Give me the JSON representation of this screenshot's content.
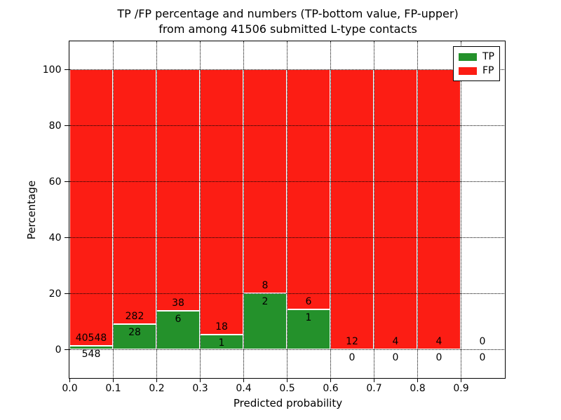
{
  "title": {
    "line1": "TP /FP percentage and numbers (TP-bottom value, FP-upper)",
    "line2": "from among 41506 submitted L-type contacts"
  },
  "axes": {
    "xlabel": "Predicted probability",
    "ylabel": "Percentage",
    "xtick_values": [
      0.0,
      0.1,
      0.2,
      0.3,
      0.4,
      0.5,
      0.6,
      0.7,
      0.8,
      0.9
    ],
    "xtick_labels": [
      "0.0",
      "0.1",
      "0.2",
      "0.3",
      "0.4",
      "0.5",
      "0.6",
      "0.7",
      "0.8",
      "0.9"
    ],
    "ytick_values": [
      0,
      20,
      40,
      60,
      80,
      100
    ],
    "ytick_labels": [
      "0",
      "20",
      "40",
      "60",
      "80",
      "100"
    ]
  },
  "legend": {
    "items": [
      {
        "label": "TP",
        "color": "#24912b"
      },
      {
        "label": "FP",
        "color": "#fc1d14"
      }
    ]
  },
  "colors": {
    "tp": "#24912b",
    "fp": "#fc1d14",
    "grid": "#000000",
    "spine": "#000000",
    "background": "#ffffff",
    "text": "#000000"
  },
  "chart_data": {
    "type": "bar",
    "stacked": true,
    "normalized_to_percent": true,
    "title": "TP /FP percentage and numbers (TP-bottom value, FP-upper) from among 41506 submitted L-type contacts",
    "xlabel": "Predicted probability",
    "ylabel": "Percentage",
    "xlim": [
      0.0,
      1.0
    ],
    "ylim": [
      -10,
      110
    ],
    "grid": true,
    "grid_style": "dotted",
    "legend_position": "upper right",
    "total_submitted": 41506,
    "bin_edges": [
      0.0,
      0.1,
      0.2,
      0.3,
      0.4,
      0.5,
      0.6,
      0.7,
      0.8,
      0.9,
      1.0
    ],
    "series": [
      {
        "name": "TP",
        "color": "#24912b",
        "counts": [
          548,
          28,
          6,
          1,
          2,
          1,
          0,
          0,
          0,
          0
        ]
      },
      {
        "name": "FP",
        "color": "#fc1d14",
        "counts": [
          40548,
          282,
          38,
          18,
          8,
          6,
          12,
          4,
          4,
          0
        ]
      }
    ],
    "tp_percent": [
      1.33,
      9.03,
      13.64,
      5.26,
      20.0,
      14.29,
      0.0,
      0.0,
      0.0,
      0.0
    ],
    "fp_percent": [
      98.67,
      90.97,
      86.36,
      94.74,
      80.0,
      85.71,
      100.0,
      100.0,
      100.0,
      0.0
    ]
  }
}
